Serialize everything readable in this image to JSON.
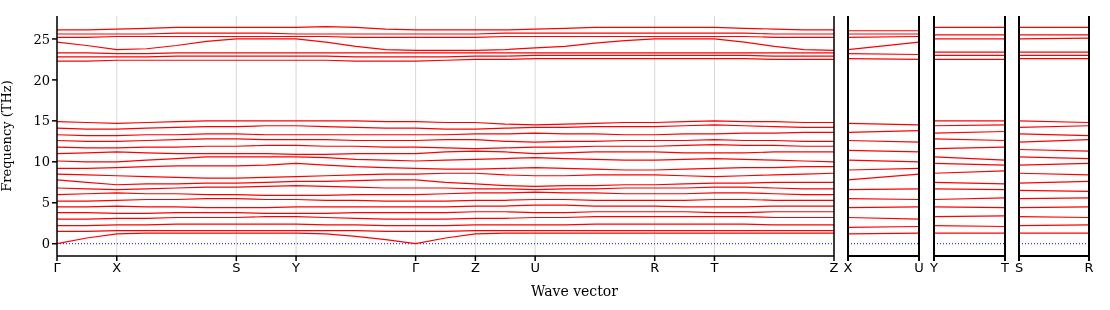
{
  "chart_data": [
    {
      "type": "line",
      "ylabel": "Frequency (THz)",
      "xlabel": "Wave vector",
      "grid": "x",
      "ylim": [
        -1.5,
        27.8
      ],
      "yticks": [
        0,
        5,
        10,
        15,
        20,
        25
      ],
      "categories": [
        "Γ",
        null,
        "X",
        null,
        null,
        null,
        "S",
        null,
        "Y",
        null,
        null,
        null,
        "Γ",
        null,
        "Z",
        null,
        "U",
        null,
        null,
        null,
        "R",
        null,
        "T",
        null,
        null,
        null,
        "Z"
      ],
      "ref_lines": [
        {
          "axis": "y",
          "value": 0,
          "color": "#0000ff",
          "line_style": "dotted"
        }
      ],
      "series": [
        {
          "color": "#ff0000",
          "values": [
            0,
            0.7,
            1.2,
            1.3,
            1.3,
            1.3,
            1.3,
            1.3,
            1.3,
            1.2,
            0.9,
            0.5,
            0,
            0.7,
            1.2,
            1.3,
            1.3,
            1.3,
            1.3,
            1.3,
            1.3,
            1.3,
            1.3,
            1.3,
            1.3,
            1.3,
            1.3
          ]
        },
        {
          "color": "#ff0000",
          "values": [
            1.5,
            1.5,
            1.6,
            1.6,
            1.6,
            1.6,
            1.6,
            1.6,
            1.6,
            1.6,
            1.6,
            1.5,
            1.5,
            1.5,
            1.6,
            1.6,
            1.6,
            1.6,
            1.6,
            1.6,
            1.6,
            1.6,
            1.6,
            1.6,
            1.6,
            1.6,
            1.6
          ]
        },
        {
          "color": "#ff0000",
          "values": [
            2.2,
            2.2,
            2.3,
            2.3,
            2.4,
            2.4,
            2.4,
            2.4,
            2.4,
            2.3,
            2.3,
            2.2,
            2.2,
            2.2,
            2.3,
            2.3,
            2.3,
            2.3,
            2.4,
            2.4,
            2.4,
            2.4,
            2.4,
            2.4,
            2.3,
            2.3,
            2.3
          ]
        },
        {
          "color": "#ff0000",
          "values": [
            3.0,
            3.0,
            3.1,
            3.1,
            3.2,
            3.2,
            3.2,
            3.3,
            3.3,
            3.2,
            3.1,
            3.0,
            3.0,
            3.0,
            3.1,
            3.1,
            3.2,
            3.2,
            3.3,
            3.3,
            3.3,
            3.3,
            3.3,
            3.3,
            3.2,
            3.2,
            3.2
          ]
        },
        {
          "color": "#ff0000",
          "values": [
            3.8,
            3.8,
            3.7,
            3.7,
            3.8,
            3.8,
            3.8,
            3.7,
            3.7,
            3.7,
            3.8,
            3.8,
            3.8,
            3.8,
            3.9,
            3.9,
            3.8,
            3.8,
            3.9,
            3.9,
            3.9,
            3.9,
            3.8,
            3.8,
            3.9,
            3.9,
            3.9
          ]
        },
        {
          "color": "#ff0000",
          "values": [
            4.5,
            4.5,
            4.6,
            4.5,
            4.5,
            4.4,
            4.4,
            4.4,
            4.5,
            4.5,
            4.5,
            4.5,
            4.5,
            4.5,
            4.6,
            4.6,
            4.7,
            4.7,
            4.6,
            4.6,
            4.6,
            4.5,
            4.5,
            4.5,
            4.6,
            4.6,
            4.6
          ]
        },
        {
          "color": "#ff0000",
          "values": [
            5.2,
            5.2,
            5.3,
            5.4,
            5.4,
            5.5,
            5.5,
            5.4,
            5.4,
            5.3,
            5.3,
            5.2,
            5.2,
            5.2,
            5.3,
            5.3,
            5.4,
            5.4,
            5.3,
            5.3,
            5.3,
            5.3,
            5.4,
            5.4,
            5.3,
            5.3,
            5.3
          ]
        },
        {
          "color": "#ff0000",
          "values": [
            6.0,
            6.1,
            6.2,
            6.1,
            6.1,
            6.0,
            6.0,
            5.9,
            5.9,
            5.9,
            6.0,
            6.0,
            6.0,
            6.1,
            6.2,
            6.2,
            6.3,
            6.2,
            6.2,
            6.1,
            6.1,
            6.1,
            6.2,
            6.2,
            6.1,
            6.0,
            6.0
          ]
        },
        {
          "color": "#ff0000",
          "values": [
            6.8,
            6.7,
            6.6,
            6.7,
            6.8,
            6.9,
            6.9,
            7.0,
            7.1,
            7.0,
            6.9,
            6.8,
            6.8,
            6.8,
            6.7,
            6.7,
            6.6,
            6.7,
            6.7,
            6.8,
            6.8,
            6.8,
            6.9,
            6.9,
            6.8,
            6.7,
            6.7
          ]
        },
        {
          "color": "#ff0000",
          "values": [
            7.8,
            7.5,
            7.2,
            7.3,
            7.3,
            7.4,
            7.4,
            7.5,
            7.6,
            7.6,
            7.7,
            7.8,
            7.8,
            7.5,
            7.3,
            7.1,
            7.0,
            7.1,
            7.1,
            7.2,
            7.2,
            7.3,
            7.4,
            7.4,
            7.5,
            7.5,
            7.5
          ]
        },
        {
          "color": "#ff0000",
          "values": [
            8.5,
            8.4,
            8.3,
            8.2,
            8.1,
            8.0,
            8.0,
            8.1,
            8.2,
            8.3,
            8.4,
            8.5,
            8.5,
            8.6,
            8.6,
            8.4,
            8.3,
            8.3,
            8.4,
            8.4,
            8.4,
            8.3,
            8.2,
            8.3,
            8.4,
            8.5,
            8.6
          ]
        },
        {
          "color": "#ff0000",
          "values": [
            9.2,
            9.2,
            9.3,
            9.4,
            9.5,
            9.5,
            9.5,
            9.6,
            9.8,
            9.6,
            9.4,
            9.3,
            9.2,
            9.1,
            9.1,
            9.2,
            9.3,
            9.2,
            9.1,
            9.0,
            9.0,
            9.1,
            9.2,
            9.3,
            9.3,
            9.4,
            9.4
          ]
        },
        {
          "color": "#ff0000",
          "values": [
            10.1,
            10.0,
            10.0,
            10.2,
            10.4,
            10.6,
            10.6,
            10.6,
            10.6,
            10.5,
            10.3,
            10.2,
            10.1,
            10.2,
            10.3,
            10.4,
            10.5,
            10.4,
            10.3,
            10.2,
            10.2,
            10.3,
            10.4,
            10.3,
            10.2,
            10.1,
            10.0
          ]
        },
        {
          "color": "#ff0000",
          "values": [
            11.0,
            11.1,
            11.2,
            11.1,
            11.0,
            11.0,
            11.0,
            11.0,
            10.9,
            10.9,
            11.0,
            11.0,
            11.0,
            11.2,
            11.3,
            11.2,
            11.0,
            11.1,
            11.2,
            11.2,
            11.2,
            11.1,
            11.1,
            11.1,
            11.2,
            11.2,
            11.2
          ]
        },
        {
          "color": "#ff0000",
          "values": [
            11.8,
            11.7,
            11.7,
            11.8,
            11.8,
            11.9,
            11.9,
            12.0,
            12.0,
            11.9,
            11.9,
            11.8,
            11.8,
            11.7,
            11.6,
            11.7,
            11.8,
            11.8,
            11.9,
            11.9,
            11.9,
            12.0,
            12.1,
            12.0,
            12.0,
            11.9,
            11.9
          ]
        },
        {
          "color": "#ff0000",
          "values": [
            12.6,
            12.5,
            12.5,
            12.6,
            12.7,
            12.8,
            12.8,
            12.7,
            12.7,
            12.7,
            12.6,
            12.6,
            12.6,
            12.7,
            12.7,
            12.5,
            12.4,
            12.5,
            12.5,
            12.6,
            12.6,
            12.6,
            12.7,
            12.6,
            12.6,
            12.5,
            12.5
          ]
        },
        {
          "color": "#ff0000",
          "values": [
            13.3,
            13.2,
            13.2,
            13.3,
            13.3,
            13.4,
            13.4,
            13.3,
            13.3,
            13.3,
            13.3,
            13.3,
            13.3,
            13.3,
            13.4,
            13.4,
            13.5,
            13.4,
            13.4,
            13.3,
            13.3,
            13.4,
            13.4,
            13.5,
            13.5,
            13.6,
            13.6
          ]
        },
        {
          "color": "#ff0000",
          "values": [
            14.1,
            14.0,
            14.0,
            14.1,
            14.2,
            14.3,
            14.3,
            14.4,
            14.4,
            14.3,
            14.2,
            14.1,
            14.1,
            14.0,
            14.0,
            14.1,
            14.2,
            14.2,
            14.3,
            14.3,
            14.3,
            14.4,
            14.5,
            14.4,
            14.3,
            14.2,
            14.2
          ]
        },
        {
          "color": "#ff0000",
          "values": [
            14.9,
            14.8,
            14.7,
            14.8,
            14.9,
            15.0,
            15.0,
            15.0,
            15.0,
            15.0,
            15.0,
            14.9,
            14.9,
            14.8,
            14.8,
            14.6,
            14.5,
            14.6,
            14.7,
            14.8,
            14.8,
            14.9,
            15.0,
            14.9,
            14.9,
            14.8,
            14.8
          ]
        },
        {
          "color": "#ff0000",
          "values": [
            22.3,
            22.3,
            22.4,
            22.4,
            22.4,
            22.4,
            22.4,
            22.4,
            22.4,
            22.4,
            22.3,
            22.3,
            22.3,
            22.4,
            22.5,
            22.5,
            22.6,
            22.6,
            22.6,
            22.6,
            22.6,
            22.6,
            22.6,
            22.6,
            22.5,
            22.5,
            22.5
          ]
        },
        {
          "color": "#ff0000",
          "values": [
            22.8,
            22.8,
            22.8,
            22.8,
            22.9,
            22.9,
            22.9,
            22.9,
            22.9,
            22.9,
            22.8,
            22.8,
            22.8,
            22.8,
            22.9,
            22.9,
            23.0,
            23.0,
            23.0,
            23.0,
            23.0,
            23.0,
            23.0,
            23.0,
            22.9,
            22.9,
            22.9
          ]
        },
        {
          "color": "#ff0000",
          "values": [
            23.3,
            23.3,
            23.2,
            23.2,
            23.3,
            23.3,
            23.3,
            23.3,
            23.3,
            23.3,
            23.3,
            23.3,
            23.3,
            23.3,
            23.3,
            23.3,
            23.3,
            23.3,
            23.3,
            23.3,
            23.3,
            23.3,
            23.3,
            23.3,
            23.3,
            23.3,
            23.3
          ]
        },
        {
          "color": "#ff0000",
          "values": [
            24.6,
            24.2,
            23.7,
            23.8,
            24.2,
            24.7,
            25.0,
            25.0,
            25.0,
            24.6,
            24.1,
            23.7,
            23.6,
            23.6,
            23.6,
            23.7,
            23.9,
            24.1,
            24.5,
            24.8,
            25.0,
            25.0,
            25.0,
            24.6,
            24.1,
            23.7,
            23.6
          ]
        },
        {
          "color": "#ff0000",
          "values": [
            25.2,
            25.2,
            25.3,
            25.3,
            25.3,
            25.3,
            25.3,
            25.3,
            25.3,
            25.3,
            25.2,
            25.2,
            25.2,
            25.2,
            25.2,
            25.3,
            25.3,
            25.3,
            25.3,
            25.3,
            25.3,
            25.3,
            25.3,
            25.3,
            25.2,
            25.2,
            25.2
          ]
        },
        {
          "color": "#ff0000",
          "values": [
            25.6,
            25.6,
            25.6,
            25.6,
            25.7,
            25.7,
            25.7,
            25.7,
            25.6,
            25.6,
            25.6,
            25.6,
            25.6,
            25.6,
            25.6,
            25.7,
            25.7,
            25.7,
            25.7,
            25.7,
            25.7,
            25.7,
            25.7,
            25.7,
            25.6,
            25.6,
            25.6
          ]
        },
        {
          "color": "#ff0000",
          "values": [
            26.1,
            26.1,
            26.2,
            26.3,
            26.4,
            26.4,
            26.4,
            26.4,
            26.4,
            26.5,
            26.4,
            26.2,
            26.1,
            26.1,
            26.1,
            26.1,
            26.2,
            26.3,
            26.4,
            26.4,
            26.4,
            26.4,
            26.4,
            26.3,
            26.2,
            26.1,
            26.1
          ]
        }
      ]
    },
    {
      "type": "line",
      "tick_labels": "x",
      "ylim": [
        -1.5,
        27.8
      ],
      "yticks": [
        0,
        5,
        10,
        15,
        20,
        25
      ],
      "categories": [
        "X",
        "U"
      ],
      "ref_lines": [
        {
          "axis": "y",
          "value": 0,
          "color": "#0000ff",
          "line_style": "dotted"
        }
      ],
      "series": [
        {
          "color": "#ff0000",
          "values": [
            1.2,
            1.3
          ]
        },
        {
          "color": "#ff0000",
          "values": [
            2.0,
            2.1
          ]
        },
        {
          "color": "#ff0000",
          "values": [
            3.2,
            3.0
          ]
        },
        {
          "color": "#ff0000",
          "values": [
            4.4,
            4.5
          ]
        },
        {
          "color": "#ff0000",
          "values": [
            5.5,
            5.4
          ]
        },
        {
          "color": "#ff0000",
          "values": [
            6.6,
            6.7
          ]
        },
        {
          "color": "#ff0000",
          "values": [
            7.8,
            8.5
          ]
        },
        {
          "color": "#ff0000",
          "values": [
            9.0,
            9.2
          ]
        },
        {
          "color": "#ff0000",
          "values": [
            10.2,
            10.0
          ]
        },
        {
          "color": "#ff0000",
          "values": [
            11.4,
            11.2
          ]
        },
        {
          "color": "#ff0000",
          "values": [
            12.6,
            12.4
          ]
        },
        {
          "color": "#ff0000",
          "values": [
            13.6,
            13.8
          ]
        },
        {
          "color": "#ff0000",
          "values": [
            14.7,
            14.5
          ]
        },
        {
          "color": "#ff0000",
          "values": [
            22.6,
            22.5
          ]
        },
        {
          "color": "#ff0000",
          "values": [
            23.2,
            23.1
          ]
        },
        {
          "color": "#ff0000",
          "values": [
            23.7,
            24.6
          ]
        },
        {
          "color": "#ff0000",
          "values": [
            25.2,
            25.3
          ]
        },
        {
          "color": "#ff0000",
          "values": [
            25.6,
            25.6
          ]
        },
        {
          "color": "#ff0000",
          "values": [
            26.0,
            26.0
          ]
        }
      ]
    },
    {
      "type": "line",
      "tick_labels": "x",
      "ylim": [
        -1.5,
        27.8
      ],
      "yticks": [
        0,
        5,
        10,
        15,
        20,
        25
      ],
      "categories": [
        "Y",
        "T"
      ],
      "ref_lines": [
        {
          "axis": "y",
          "value": 0,
          "color": "#0000ff",
          "line_style": "dotted"
        }
      ],
      "series": [
        {
          "color": "#ff0000",
          "values": [
            1.3,
            1.3
          ]
        },
        {
          "color": "#ff0000",
          "values": [
            2.2,
            2.1
          ]
        },
        {
          "color": "#ff0000",
          "values": [
            3.3,
            3.4
          ]
        },
        {
          "color": "#ff0000",
          "values": [
            4.5,
            4.4
          ]
        },
        {
          "color": "#ff0000",
          "values": [
            5.4,
            5.6
          ]
        },
        {
          "color": "#ff0000",
          "values": [
            6.7,
            6.6
          ]
        },
        {
          "color": "#ff0000",
          "values": [
            7.5,
            7.3
          ]
        },
        {
          "color": "#ff0000",
          "values": [
            8.6,
            8.9
          ]
        },
        {
          "color": "#ff0000",
          "values": [
            9.8,
            9.6
          ]
        },
        {
          "color": "#ff0000",
          "values": [
            10.6,
            10.2
          ]
        },
        {
          "color": "#ff0000",
          "values": [
            11.6,
            11.8
          ]
        },
        {
          "color": "#ff0000",
          "values": [
            12.8,
            12.6
          ]
        },
        {
          "color": "#ff0000",
          "values": [
            13.5,
            13.7
          ]
        },
        {
          "color": "#ff0000",
          "values": [
            14.4,
            14.5
          ]
        },
        {
          "color": "#ff0000",
          "values": [
            15.0,
            15.0
          ]
        },
        {
          "color": "#ff0000",
          "values": [
            22.5,
            22.5
          ]
        },
        {
          "color": "#ff0000",
          "values": [
            23.0,
            23.0
          ]
        },
        {
          "color": "#ff0000",
          "values": [
            23.4,
            23.4
          ]
        },
        {
          "color": "#ff0000",
          "values": [
            25.0,
            25.0
          ]
        },
        {
          "color": "#ff0000",
          "values": [
            25.5,
            25.5
          ]
        },
        {
          "color": "#ff0000",
          "values": [
            26.4,
            26.4
          ]
        }
      ]
    },
    {
      "type": "line",
      "tick_labels": "x",
      "ylim": [
        -1.5,
        27.8
      ],
      "yticks": [
        0,
        5,
        10,
        15,
        20,
        25
      ],
      "categories": [
        "S",
        "R"
      ],
      "ref_lines": [
        {
          "axis": "y",
          "value": 0,
          "color": "#0000ff",
          "line_style": "dotted"
        }
      ],
      "series": [
        {
          "color": "#ff0000",
          "values": [
            1.3,
            1.3
          ]
        },
        {
          "color": "#ff0000",
          "values": [
            2.2,
            2.3
          ]
        },
        {
          "color": "#ff0000",
          "values": [
            3.3,
            3.2
          ]
        },
        {
          "color": "#ff0000",
          "values": [
            4.4,
            4.5
          ]
        },
        {
          "color": "#ff0000",
          "values": [
            5.5,
            5.6
          ]
        },
        {
          "color": "#ff0000",
          "values": [
            6.5,
            6.4
          ]
        },
        {
          "color": "#ff0000",
          "values": [
            7.4,
            7.6
          ]
        },
        {
          "color": "#ff0000",
          "values": [
            8.6,
            8.4
          ]
        },
        {
          "color": "#ff0000",
          "values": [
            9.6,
            9.8
          ]
        },
        {
          "color": "#ff0000",
          "values": [
            10.6,
            10.4
          ]
        },
        {
          "color": "#ff0000",
          "values": [
            11.5,
            11.3
          ]
        },
        {
          "color": "#ff0000",
          "values": [
            12.4,
            12.7
          ]
        },
        {
          "color": "#ff0000",
          "values": [
            13.4,
            13.2
          ]
        },
        {
          "color": "#ff0000",
          "values": [
            14.2,
            14.4
          ]
        },
        {
          "color": "#ff0000",
          "values": [
            15.0,
            14.8
          ]
        },
        {
          "color": "#ff0000",
          "values": [
            22.6,
            22.6
          ]
        },
        {
          "color": "#ff0000",
          "values": [
            23.0,
            23.0
          ]
        },
        {
          "color": "#ff0000",
          "values": [
            23.4,
            23.4
          ]
        },
        {
          "color": "#ff0000",
          "values": [
            25.0,
            25.1
          ]
        },
        {
          "color": "#ff0000",
          "values": [
            25.5,
            25.5
          ]
        },
        {
          "color": "#ff0000",
          "values": [
            26.4,
            26.4
          ]
        }
      ]
    }
  ]
}
